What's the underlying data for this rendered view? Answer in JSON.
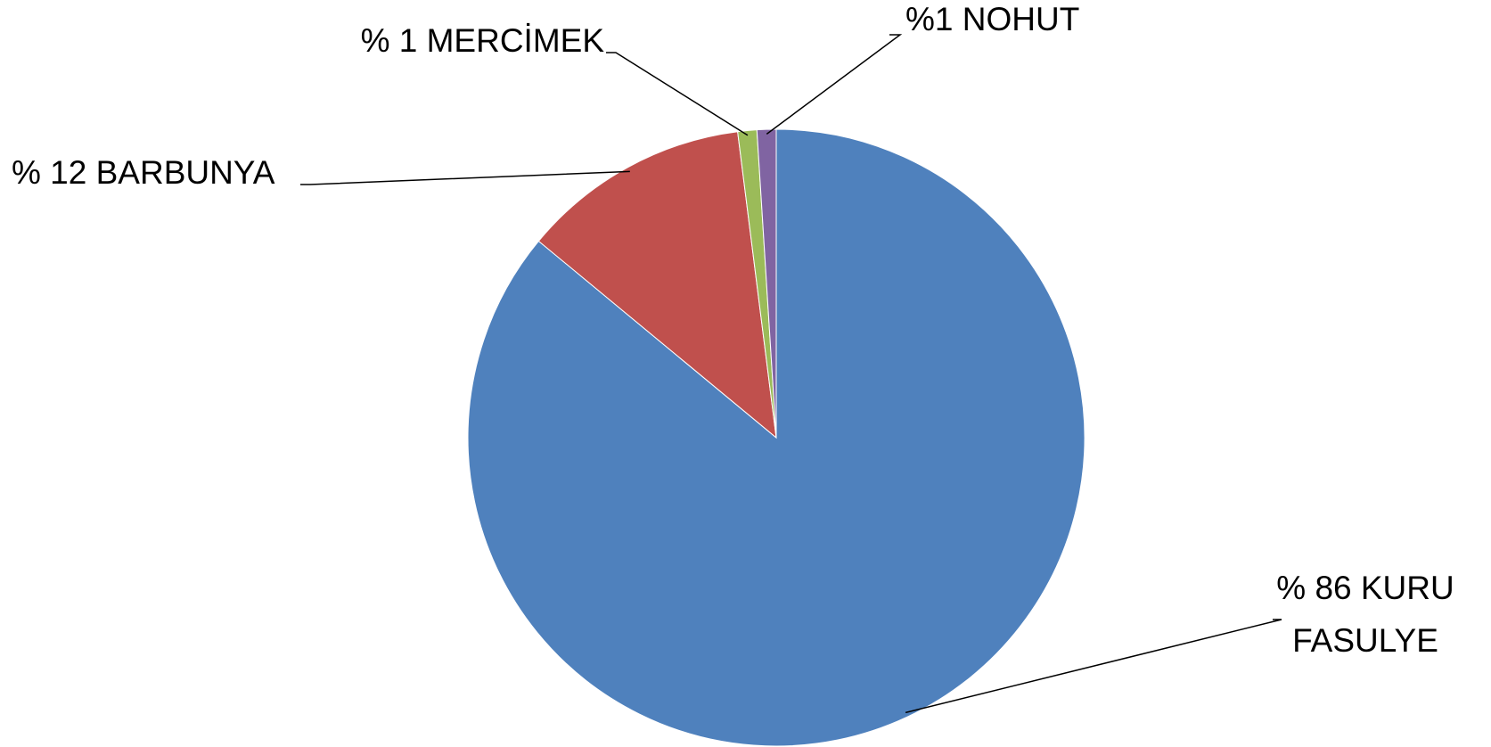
{
  "chart_data": {
    "type": "pie",
    "values": [
      86,
      12,
      1,
      1
    ],
    "value_labels": [
      "% 86 KURU FASULYE",
      "% 12 BARBUNYA",
      "% 1 MERCİMEK",
      "%1 NOHUT"
    ],
    "colors": [
      "#4f81bd",
      "#c0504d",
      "#9bbb59",
      "#8064a2"
    ]
  }
}
